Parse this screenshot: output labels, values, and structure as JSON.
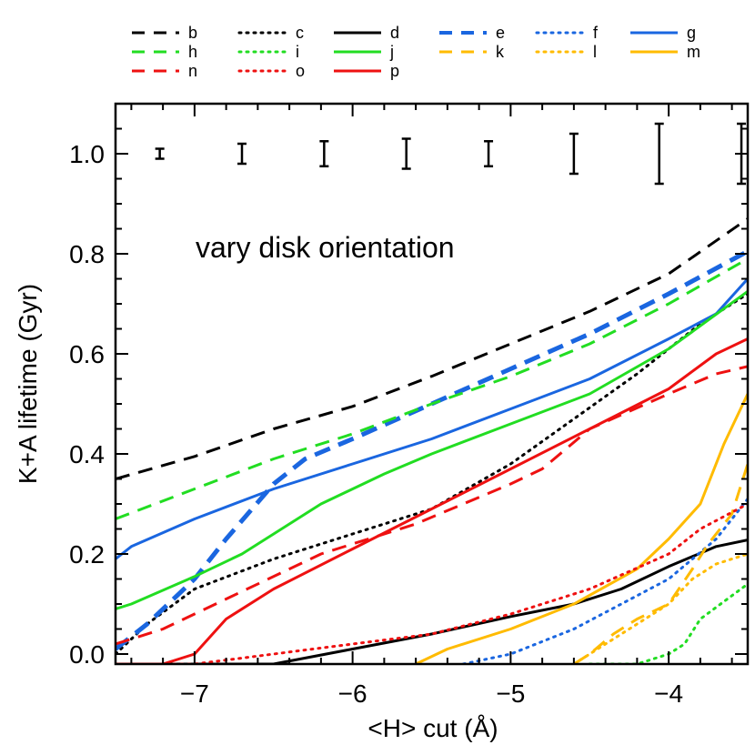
{
  "chart_data": {
    "type": "line",
    "title": "",
    "annotation": "vary disk orientation",
    "xlabel": "<H> cut (Å)",
    "ylabel": "K+A lifetime (Gyr)",
    "xlim": [
      -7.5,
      -3.5
    ],
    "ylim": [
      -0.02,
      1.1
    ],
    "xticks": [
      -7,
      -6,
      -5,
      -4
    ],
    "xtick_labels": [
      "−7",
      "−6",
      "−5",
      "−4"
    ],
    "yticks": [
      0.0,
      0.2,
      0.4,
      0.6,
      0.8,
      1.0
    ],
    "ytick_labels": [
      "0.0",
      "0.2",
      "0.4",
      "0.6",
      "0.8",
      "1.0"
    ],
    "error_bars": [
      {
        "x": -7.22,
        "low": 0.99,
        "high": 1.01
      },
      {
        "x": -6.7,
        "low": 0.98,
        "high": 1.02
      },
      {
        "x": -6.18,
        "low": 0.975,
        "high": 1.025
      },
      {
        "x": -5.66,
        "low": 0.97,
        "high": 1.03
      },
      {
        "x": -5.14,
        "low": 0.975,
        "high": 1.025
      },
      {
        "x": -4.6,
        "low": 0.96,
        "high": 1.04
      },
      {
        "x": -4.06,
        "low": 0.94,
        "high": 1.06
      },
      {
        "x": -3.54,
        "low": 0.94,
        "high": 1.06
      }
    ],
    "series": [
      {
        "name": "b",
        "color": "#000000",
        "style": "dashed",
        "width": 3,
        "points": [
          [
            -7.5,
            0.35
          ],
          [
            -7,
            0.395
          ],
          [
            -6.5,
            0.45
          ],
          [
            -6,
            0.495
          ],
          [
            -5.5,
            0.555
          ],
          [
            -5,
            0.62
          ],
          [
            -4.5,
            0.685
          ],
          [
            -4,
            0.76
          ],
          [
            -3.5,
            0.87
          ]
        ]
      },
      {
        "name": "c",
        "color": "#000000",
        "style": "dotted",
        "width": 3,
        "points": [
          [
            -7.5,
            0.0
          ],
          [
            -7.3,
            0.06
          ],
          [
            -7,
            0.13
          ],
          [
            -6.5,
            0.19
          ],
          [
            -6,
            0.24
          ],
          [
            -5.5,
            0.29
          ],
          [
            -5,
            0.38
          ],
          [
            -4.6,
            0.47
          ],
          [
            -4.2,
            0.56
          ],
          [
            -3.8,
            0.66
          ],
          [
            -3.5,
            0.72
          ]
        ]
      },
      {
        "name": "d",
        "color": "#000000",
        "style": "solid",
        "width": 3,
        "points": [
          [
            -7.5,
            -0.02
          ],
          [
            -6.5,
            -0.02
          ],
          [
            -6,
            0.01
          ],
          [
            -5.5,
            0.04
          ],
          [
            -5,
            0.075
          ],
          [
            -4.6,
            0.1
          ],
          [
            -4.3,
            0.13
          ],
          [
            -4,
            0.175
          ],
          [
            -3.7,
            0.215
          ],
          [
            -3.5,
            0.228
          ]
        ]
      },
      {
        "name": "e",
        "color": "#1a66e0",
        "style": "dashed",
        "width": 5,
        "points": [
          [
            -7.5,
            0.01
          ],
          [
            -7.3,
            0.06
          ],
          [
            -7,
            0.15
          ],
          [
            -6.8,
            0.23
          ],
          [
            -6.5,
            0.34
          ],
          [
            -6.3,
            0.39
          ],
          [
            -6,
            0.43
          ],
          [
            -5.5,
            0.5
          ],
          [
            -5,
            0.57
          ],
          [
            -4.5,
            0.64
          ],
          [
            -4,
            0.72
          ],
          [
            -3.5,
            0.805
          ]
        ]
      },
      {
        "name": "f",
        "color": "#1a66e0",
        "style": "dotted",
        "width": 3,
        "points": [
          [
            -5.3,
            -0.02
          ],
          [
            -5,
            0.0
          ],
          [
            -4.6,
            0.05
          ],
          [
            -4.3,
            0.1
          ],
          [
            -4,
            0.15
          ],
          [
            -3.85,
            0.19
          ],
          [
            -3.7,
            0.23
          ],
          [
            -3.5,
            0.31
          ]
        ]
      },
      {
        "name": "g",
        "color": "#1a66e0",
        "style": "solid",
        "width": 3,
        "points": [
          [
            -7.5,
            0.19
          ],
          [
            -7.4,
            0.215
          ],
          [
            -7,
            0.27
          ],
          [
            -6.5,
            0.33
          ],
          [
            -6,
            0.38
          ],
          [
            -5.5,
            0.43
          ],
          [
            -5,
            0.49
          ],
          [
            -4.5,
            0.55
          ],
          [
            -4,
            0.63
          ],
          [
            -3.7,
            0.68
          ],
          [
            -3.5,
            0.75
          ]
        ]
      },
      {
        "name": "h",
        "color": "#22dd22",
        "style": "dashed",
        "width": 3,
        "points": [
          [
            -7.5,
            0.27
          ],
          [
            -7,
            0.33
          ],
          [
            -6.5,
            0.39
          ],
          [
            -6,
            0.44
          ],
          [
            -5.5,
            0.5
          ],
          [
            -5,
            0.555
          ],
          [
            -4.5,
            0.62
          ],
          [
            -4,
            0.7
          ],
          [
            -3.5,
            0.79
          ]
        ]
      },
      {
        "name": "i",
        "color": "#22dd22",
        "style": "dotted",
        "width": 3,
        "points": [
          [
            -4.5,
            -0.02
          ],
          [
            -4.2,
            -0.02
          ],
          [
            -4,
            0.0
          ],
          [
            -3.9,
            0.02
          ],
          [
            -3.8,
            0.07
          ],
          [
            -3.5,
            0.14
          ]
        ]
      },
      {
        "name": "j",
        "color": "#22dd22",
        "style": "solid",
        "width": 3,
        "points": [
          [
            -7.5,
            0.09
          ],
          [
            -7.4,
            0.1
          ],
          [
            -7,
            0.155
          ],
          [
            -6.7,
            0.2
          ],
          [
            -6.5,
            0.24
          ],
          [
            -6.2,
            0.3
          ],
          [
            -5.8,
            0.36
          ],
          [
            -5.5,
            0.4
          ],
          [
            -5,
            0.46
          ],
          [
            -4.5,
            0.52
          ],
          [
            -4,
            0.61
          ],
          [
            -3.5,
            0.725
          ]
        ]
      },
      {
        "name": "k",
        "color": "#ffbb00",
        "style": "dashed",
        "width": 3,
        "points": [
          [
            -4.6,
            -0.02
          ],
          [
            -4.5,
            0.0
          ],
          [
            -4.35,
            0.04
          ],
          [
            -4.2,
            0.07
          ],
          [
            -4,
            0.1
          ],
          [
            -3.85,
            0.17
          ],
          [
            -3.75,
            0.22
          ],
          [
            -3.6,
            0.28
          ],
          [
            -3.5,
            0.38
          ]
        ]
      },
      {
        "name": "l",
        "color": "#ffbb00",
        "style": "dotted",
        "width": 3,
        "points": [
          [
            -4.6,
            -0.02
          ],
          [
            -4.4,
            0.02
          ],
          [
            -4.2,
            0.06
          ],
          [
            -4,
            0.1
          ],
          [
            -3.85,
            0.15
          ],
          [
            -3.7,
            0.18
          ],
          [
            -3.5,
            0.2
          ]
        ]
      },
      {
        "name": "m",
        "color": "#ffbb00",
        "style": "solid",
        "width": 3,
        "points": [
          [
            -5.6,
            -0.02
          ],
          [
            -5.4,
            0.01
          ],
          [
            -5,
            0.05
          ],
          [
            -4.6,
            0.1
          ],
          [
            -4.2,
            0.17
          ],
          [
            -4,
            0.23
          ],
          [
            -3.8,
            0.3
          ],
          [
            -3.65,
            0.42
          ],
          [
            -3.5,
            0.52
          ]
        ]
      },
      {
        "name": "n",
        "color": "#ee1111",
        "style": "dashed",
        "width": 3,
        "points": [
          [
            -7.5,
            0.02
          ],
          [
            -7.2,
            0.05
          ],
          [
            -6.8,
            0.11
          ],
          [
            -6.2,
            0.2
          ],
          [
            -5.6,
            0.26
          ],
          [
            -5,
            0.34
          ],
          [
            -4.8,
            0.37
          ],
          [
            -4.5,
            0.45
          ],
          [
            -4,
            0.52
          ],
          [
            -3.7,
            0.56
          ],
          [
            -3.5,
            0.575
          ]
        ]
      },
      {
        "name": "o",
        "color": "#ee1111",
        "style": "dotted",
        "width": 3,
        "points": [
          [
            -7.5,
            -0.02
          ],
          [
            -7,
            -0.02
          ],
          [
            -6.5,
            0.0
          ],
          [
            -6,
            0.02
          ],
          [
            -5.5,
            0.04
          ],
          [
            -5,
            0.08
          ],
          [
            -4.5,
            0.13
          ],
          [
            -4,
            0.2
          ],
          [
            -3.8,
            0.25
          ],
          [
            -3.5,
            0.3
          ]
        ]
      },
      {
        "name": "p",
        "color": "#ee1111",
        "style": "solid",
        "width": 3,
        "points": [
          [
            -7.5,
            -0.02
          ],
          [
            -7.2,
            -0.02
          ],
          [
            -7,
            0.0
          ],
          [
            -6.8,
            0.07
          ],
          [
            -6.5,
            0.13
          ],
          [
            -6,
            0.21
          ],
          [
            -5.5,
            0.29
          ],
          [
            -5,
            0.37
          ],
          [
            -4.5,
            0.45
          ],
          [
            -4,
            0.53
          ],
          [
            -3.7,
            0.6
          ],
          [
            -3.5,
            0.63
          ]
        ]
      }
    ]
  }
}
